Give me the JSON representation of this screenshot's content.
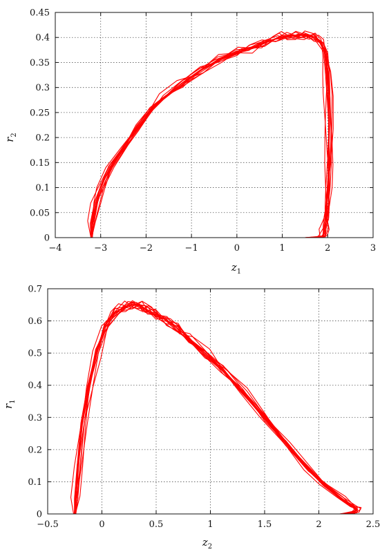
{
  "chart_data": [
    {
      "type": "line",
      "xlabel": "z",
      "xlabel_sub": "1",
      "ylabel": "r",
      "ylabel_sub": "2",
      "xlim": [
        -4,
        3
      ],
      "ylim": [
        0,
        0.45
      ],
      "xticks": [
        -4,
        -3,
        -2,
        -1,
        0,
        1,
        2,
        3
      ],
      "yticks": [
        0,
        0.05,
        0.1,
        0.15,
        0.2,
        0.25,
        0.3,
        0.35,
        0.4,
        0.45
      ],
      "xtick_labels": [
        "−4",
        "−3",
        "−2",
        "−1",
        "0",
        "1",
        "2",
        "3"
      ],
      "ytick_labels": [
        "0",
        "0.05",
        "0.1",
        "0.15",
        "0.2",
        "0.25",
        "0.3",
        "0.35",
        "0.4",
        "0.45"
      ],
      "grid": true,
      "color": "#ff0000",
      "series": [
        {
          "x": [
            -3.2,
            -3.18,
            -3.1,
            -3.0,
            -2.8,
            -2.5,
            -2.2,
            -1.9,
            -1.6,
            -1.2,
            -0.8,
            -0.4,
            0.0,
            0.3,
            0.6,
            0.9,
            1.1,
            1.3,
            1.5,
            1.7,
            1.85,
            1.95,
            2.0,
            2.02,
            2.03,
            2.02,
            2.0,
            1.98,
            1.97,
            1.95,
            1.93,
            1.9,
            1.85,
            1.5,
            0.5,
            -0.5,
            -1.5,
            -2.5,
            -3.2
          ],
          "y": [
            0.0,
            0.03,
            0.07,
            0.1,
            0.14,
            0.18,
            0.22,
            0.255,
            0.28,
            0.31,
            0.335,
            0.355,
            0.37,
            0.38,
            0.39,
            0.398,
            0.402,
            0.405,
            0.404,
            0.4,
            0.39,
            0.37,
            0.33,
            0.28,
            0.22,
            0.15,
            0.1,
            0.06,
            0.04,
            0.025,
            0.015,
            0.005,
            0.001,
            0.0,
            0.0,
            0.0,
            0.0,
            0.0,
            0.0
          ]
        }
      ]
    },
    {
      "type": "line",
      "xlabel": "z",
      "xlabel_sub": "2",
      "ylabel": "r",
      "ylabel_sub": "1",
      "xlim": [
        -0.5,
        2.5
      ],
      "ylim": [
        0,
        0.7
      ],
      "xticks": [
        -0.5,
        0,
        0.5,
        1,
        1.5,
        2,
        2.5
      ],
      "yticks": [
        0,
        0.1,
        0.2,
        0.3,
        0.4,
        0.5,
        0.6,
        0.7
      ],
      "xtick_labels": [
        "−0.5",
        "0",
        "0.5",
        "1",
        "1.5",
        "2",
        "2.5"
      ],
      "ytick_labels": [
        "0",
        "0.1",
        "0.2",
        "0.3",
        "0.4",
        "0.5",
        "0.6",
        "0.7"
      ],
      "grid": true,
      "color": "#ff0000",
      "series": [
        {
          "x": [
            -0.25,
            -0.24,
            -0.22,
            -0.18,
            -0.12,
            -0.05,
            0.03,
            0.12,
            0.2,
            0.28,
            0.35,
            0.42,
            0.5,
            0.6,
            0.7,
            0.8,
            0.95,
            1.1,
            1.3,
            1.5,
            1.7,
            1.9,
            2.05,
            2.2,
            2.3,
            2.35,
            2.33,
            2.2,
            1.5,
            0.8,
            0.2,
            -0.25
          ],
          "y": [
            0.0,
            0.05,
            0.15,
            0.28,
            0.4,
            0.5,
            0.58,
            0.625,
            0.645,
            0.65,
            0.645,
            0.635,
            0.62,
            0.6,
            0.575,
            0.545,
            0.5,
            0.45,
            0.38,
            0.3,
            0.22,
            0.14,
            0.09,
            0.05,
            0.025,
            0.015,
            0.005,
            0.0,
            0.0,
            0.0,
            0.0,
            0.0
          ]
        }
      ]
    }
  ]
}
